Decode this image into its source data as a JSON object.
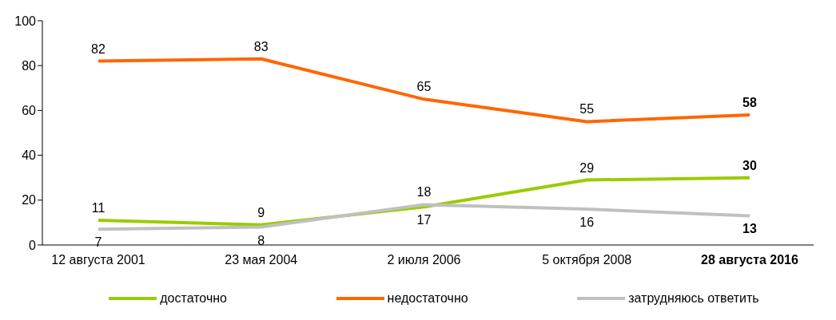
{
  "chart_data": {
    "type": "line",
    "categories": [
      "12 августа 2001",
      "23 мая 2004",
      "2 июля 2006",
      "5 октября 2008",
      "28 августа 2016"
    ],
    "series": [
      {
        "name": "достаточно",
        "color": "#99cc00",
        "values": [
          11,
          9,
          17,
          29,
          30
        ]
      },
      {
        "name": "недостаточно",
        "color": "#ff6600",
        "values": [
          82,
          83,
          65,
          55,
          58
        ]
      },
      {
        "name": "затрудняюсь ответить",
        "color": "#c0c0c0",
        "values": [
          7,
          8,
          18,
          16,
          13
        ]
      }
    ],
    "ylim": [
      0,
      100
    ],
    "yticks": [
      0,
      20,
      40,
      60,
      80,
      100
    ],
    "grid": false,
    "legend": "bottom",
    "data_labels": true,
    "marker": "none",
    "line_style": "solid"
  }
}
